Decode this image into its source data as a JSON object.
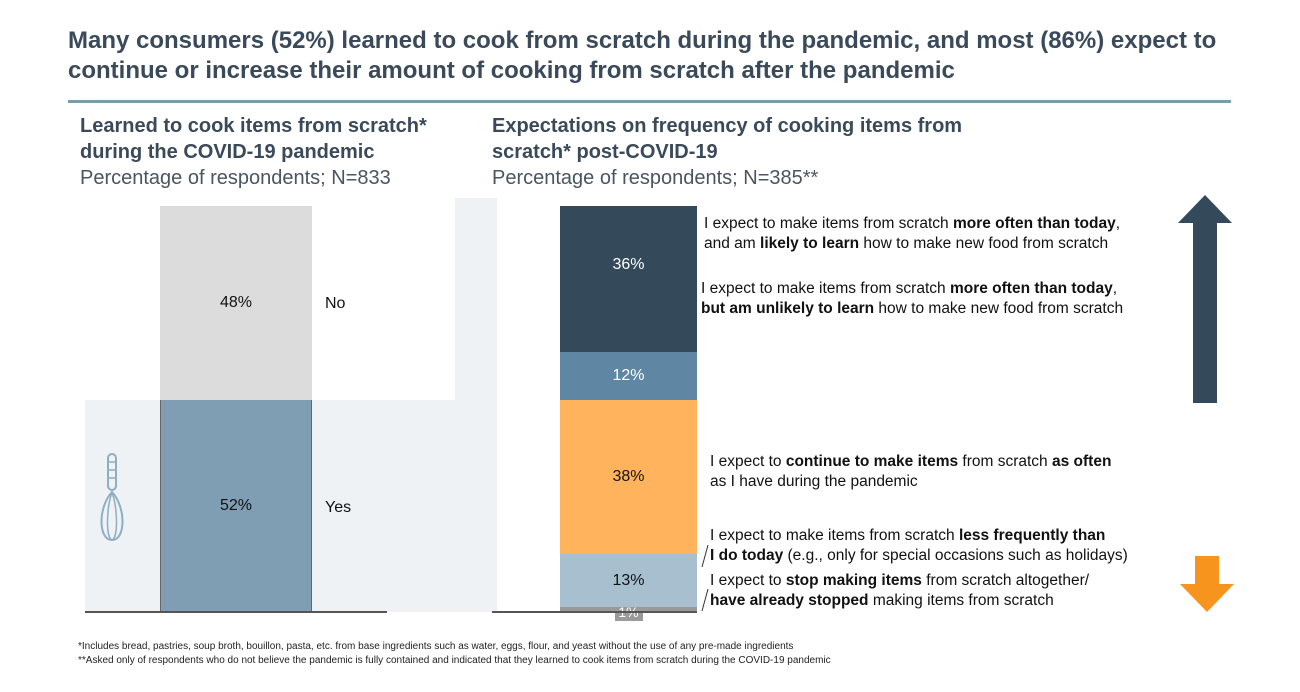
{
  "title": "Many consumers (52%) learned to cook from scratch during the pandemic, and most (86%) expect to continue or increase their amount of cooking from scratch after the pandemic",
  "left": {
    "heading_line1": "Learned to cook items from scratch*",
    "heading_line2": "during the COVID-19 pandemic",
    "subheading": "Percentage of respondents; N=833"
  },
  "right": {
    "heading_line1": "Expectations on frequency of cooking items from",
    "heading_line2": "scratch* post-COVID-19",
    "subheading": "Percentage of respondents; N=385**"
  },
  "chart_data": [
    {
      "type": "bar",
      "stacked": true,
      "title": "Learned to cook items from scratch* during the COVID-19 pandemic",
      "segments": [
        {
          "label": "Yes",
          "value": 52,
          "display": "52%",
          "color": "#7f9eb4"
        },
        {
          "label": "No",
          "value": 48,
          "display": "48%",
          "color": "#dcdcdc"
        }
      ]
    },
    {
      "type": "bar",
      "stacked": true,
      "title": "Expectations on frequency of cooking items from scratch* post-COVID-19",
      "segments": [
        {
          "label": "stop",
          "value": 1,
          "display": "1%",
          "color": "#9a9a9a"
        },
        {
          "label": "less",
          "value": 13,
          "display": "13%",
          "color": "#a8bfd0"
        },
        {
          "label": "same",
          "value": 38,
          "display": "38%",
          "color": "#ffb35c"
        },
        {
          "label": "more_unlikely",
          "value": 12,
          "display": "12%",
          "color": "#5f87a3"
        },
        {
          "label": "more_likely",
          "value": 36,
          "display": "36%",
          "color": "#344a5a"
        }
      ]
    }
  ],
  "annotations": {
    "a1_l1_pre": "I expect to make items from scratch ",
    "a1_l1_bold": "more often than today",
    "a1_l1_post": ",",
    "a1_l2_pre": "and am ",
    "a1_l2_bold": "likely to learn",
    "a1_l2_post": " how to make new food from scratch",
    "a2_l1_pre": "I expect to make items from scratch ",
    "a2_l1_bold": "more often than today",
    "a2_l1_post": ",",
    "a2_l2_bold": "but am unlikely to learn",
    "a2_l2_post": " how to make new food from scratch",
    "a3_l1_pre": "I expect to ",
    "a3_l1_bold": "continue to make items",
    "a3_l1_mid": " from scratch ",
    "a3_l1_bold2": "as often",
    "a3_l2": "as I have during the pandemic",
    "a4_l1_pre": "I expect to make items from scratch ",
    "a4_l1_bold": "less frequently than",
    "a4_l2_bold": "I do today",
    "a4_l2_post": " (e.g., only for special occasions such as holidays)",
    "a5_l1_pre": "I expect to ",
    "a5_l1_bold": "stop making items",
    "a5_l1_post": " from scratch altogether/",
    "a5_l2_bold": "have already stopped",
    "a5_l2_post": " making items from scratch"
  },
  "footnotes": {
    "f1": "*Includes bread, pastries, soup broth, bouillon, pasta, etc. from base ingredients such as water, eggs, flour, and yeast without the use of any pre-made ingredients",
    "f2": "**Asked only of respondents who do not believe the pandemic is fully contained and indicated that they learned to cook items from scratch during the COVID-19 pandemic"
  },
  "icons": {
    "whisk": "whisk-icon",
    "up": "arrow-up-icon",
    "down": "arrow-down-icon"
  },
  "colors": {
    "arrow_up": "#344a5a",
    "arrow_down": "#f7941d"
  }
}
